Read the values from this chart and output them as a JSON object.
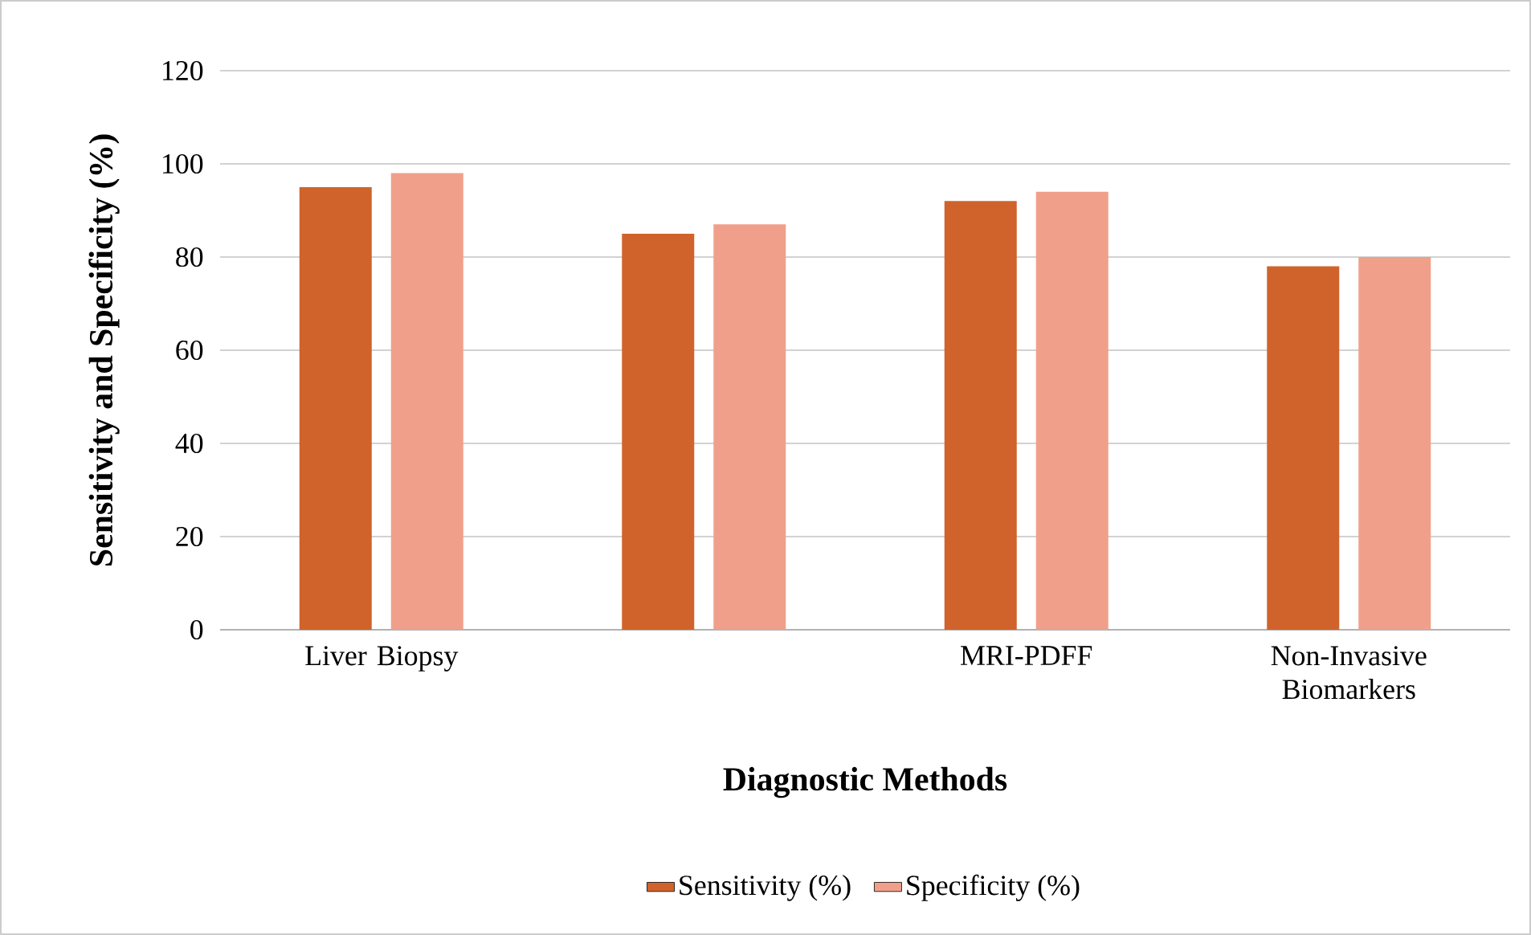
{
  "chart_data": {
    "type": "bar",
    "xlabel": "Diagnostic Methods",
    "ylabel": "Sensitivity and Specificity (%)",
    "categories": [
      "Liver Biopsy",
      null,
      "MRI-PDFF",
      "Non-Invasive Biomarkers"
    ],
    "series": [
      {
        "name": "Sensitivity (%)",
        "color": "#d0632b",
        "values": [
          95,
          85,
          92,
          78
        ]
      },
      {
        "name": "Specificity (%)",
        "color": "#f0a08a",
        "values": [
          98,
          87,
          94,
          80
        ]
      }
    ],
    "ylim": [
      0,
      120
    ],
    "yticks": [
      0,
      20,
      40,
      60,
      80,
      100,
      120
    ],
    "grid": "y",
    "legend": "bottom"
  }
}
